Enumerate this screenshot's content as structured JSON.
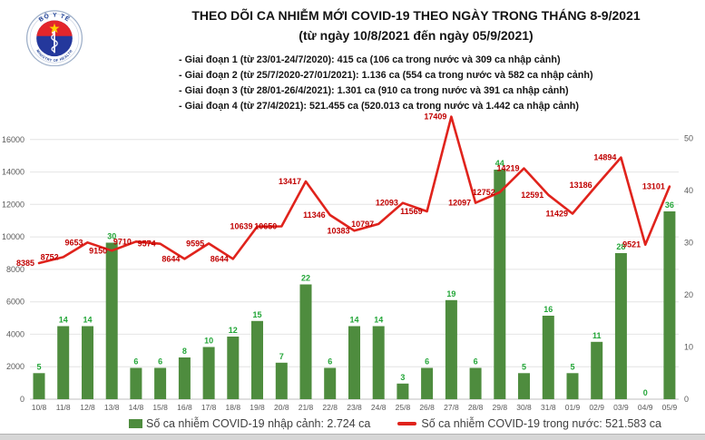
{
  "header": {
    "title_line1": "THEO DÕI CA NHIỄM MỚI COVID-19 THEO NGÀY TRONG THÁNG 8-9/2021",
    "title_line2": "(từ ngày 10/8/2021 đến ngày 05/9/2021)",
    "bullets": [
      "- Giai đoạn 1 (từ 23/01-24/7/2020): 415 ca (106 ca trong nước và 309 ca nhập cảnh)",
      "- Giai đoạn 2 (từ 25/7/2020-27/01/2021): 1.136 ca (554 ca trong nước và 582 ca nhập cảnh)",
      "- Giai đoạn 3 (từ 28/01-26/4/2021): 1.301 ca (910 ca trong nước và 391 ca nhập cảnh)",
      "- Giai đoạn 4 (từ 27/4/2021): 521.455 ca (520.013 ca trong nước và 1.442 ca nhập cảnh)"
    ],
    "logo_top_text": "BỘ Y TẾ",
    "logo_bottom_text": "MINISTRY OF HEALTH"
  },
  "chart_data": {
    "type": "combo-bar-line",
    "categories": [
      "10/8",
      "11/8",
      "12/8",
      "13/8",
      "14/8",
      "15/8",
      "16/8",
      "17/8",
      "18/8",
      "19/8",
      "20/8",
      "21/8",
      "22/8",
      "23/8",
      "24/8",
      "25/8",
      "26/8",
      "27/8",
      "28/8",
      "29/8",
      "30/8",
      "31/8",
      "01/9",
      "02/9",
      "03/9",
      "04/9",
      "05/9"
    ],
    "series": [
      {
        "name": "Số ca nhiễm COVID-19 nhập cảnh",
        "type": "bar",
        "axis": "right",
        "color": "#4E8C3E",
        "label_color": "#23A638",
        "values": [
          5,
          14,
          14,
          30,
          6,
          6,
          8,
          10,
          12,
          15,
          7,
          22,
          6,
          14,
          14,
          3,
          6,
          19,
          6,
          44,
          5,
          16,
          5,
          11,
          28,
          0,
          36
        ]
      },
      {
        "name": "Số ca nhiễm COVID-19 trong nước",
        "type": "line",
        "axis": "left",
        "color": "#E0231C",
        "label_color": "#C00000",
        "values": [
          8385,
          8752,
          9653,
          9150,
          9710,
          9574,
          8644,
          9595,
          8644,
          10639,
          10650,
          13417,
          11346,
          10383,
          10797,
          12093,
          11569,
          17409,
          12097,
          12752,
          14219,
          12591,
          11429,
          13186,
          14894,
          9521,
          13101
        ]
      }
    ],
    "left_axis": {
      "min": 0,
      "max": 18000,
      "tick_labels": [
        0,
        2000,
        4000,
        6000,
        8000,
        10000,
        12000,
        14000,
        16000
      ]
    },
    "right_axis": {
      "min": 0,
      "plot_max": 56,
      "tick_labels": [
        0,
        10,
        20,
        30,
        40,
        50
      ]
    },
    "grid": true,
    "legend_position": "bottom",
    "legend": [
      "Số ca nhiễm COVID-19 nhập cảnh: 2.724 ca",
      "Số ca nhiễm COVID-19 trong nước: 521.583 ca"
    ],
    "grid_color": "#E4E4E4",
    "axis_line_color": "#BFBFBF",
    "axis_text_color": "#595959"
  }
}
